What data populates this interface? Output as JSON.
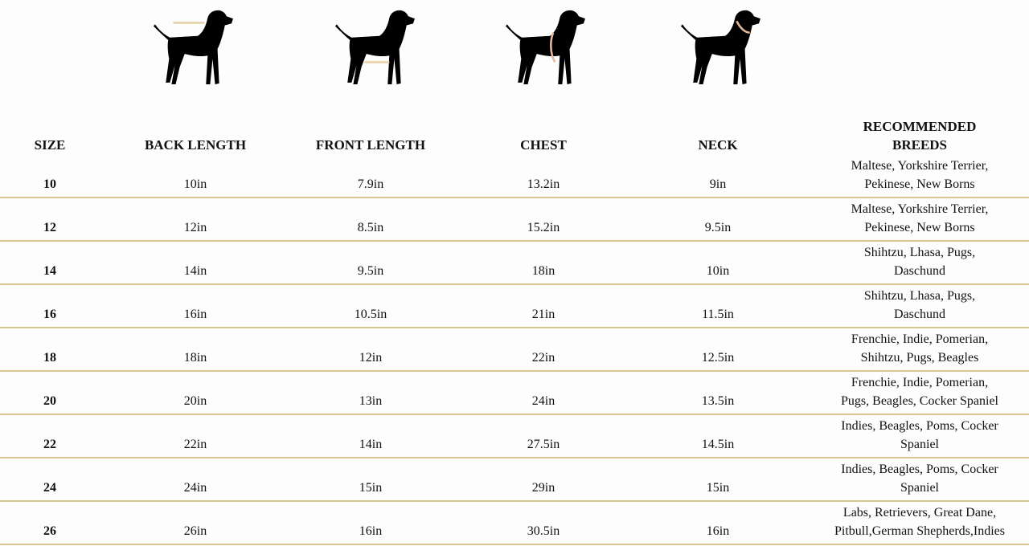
{
  "icons": [
    "dog-back-length-icon",
    "dog-front-length-icon",
    "dog-chest-icon",
    "dog-neck-icon"
  ],
  "colors": {
    "row_divider": "#d9c791",
    "measure_mark": "#e8b89a",
    "silhouette": "#000000"
  },
  "headers": {
    "size": "SIZE",
    "back": "BACK LENGTH",
    "front": "FRONT LENGTH",
    "chest": "CHEST",
    "neck": "NECK",
    "breeds_1": "RECOMMENDED",
    "breeds_2": "BREEDS"
  },
  "rows": [
    {
      "size": "10",
      "back": "10in",
      "front": "7.9in",
      "chest": "13.2in",
      "neck": "9in",
      "breeds_1": "Maltese, Yorkshire Terrier,",
      "breeds_2": "Pekinese, New Borns"
    },
    {
      "size": "12",
      "back": "12in",
      "front": "8.5in",
      "chest": "15.2in",
      "neck": "9.5in",
      "breeds_1": "Maltese, Yorkshire Terrier,",
      "breeds_2": "Pekinese, New Borns"
    },
    {
      "size": "14",
      "back": "14in",
      "front": "9.5in",
      "chest": "18in",
      "neck": "10in",
      "breeds_1": "Shihtzu, Lhasa, Pugs,",
      "breeds_2": "Daschund"
    },
    {
      "size": "16",
      "back": "16in",
      "front": "10.5in",
      "chest": "21in",
      "neck": "11.5in",
      "breeds_1": "Shihtzu, Lhasa, Pugs,",
      "breeds_2": "Daschund"
    },
    {
      "size": "18",
      "back": "18in",
      "front": "12in",
      "chest": "22in",
      "neck": "12.5in",
      "breeds_1": "Frenchie, Indie, Pomerian,",
      "breeds_2": "Shihtzu, Pugs, Beagles"
    },
    {
      "size": "20",
      "back": "20in",
      "front": "13in",
      "chest": "24in",
      "neck": "13.5in",
      "breeds_1": "Frenchie, Indie, Pomerian,",
      "breeds_2": "Pugs, Beagles, Cocker Spaniel"
    },
    {
      "size": "22",
      "back": "22in",
      "front": "14in",
      "chest": "27.5in",
      "neck": "14.5in",
      "breeds_1": "Indies, Beagles, Poms, Cocker",
      "breeds_2": "Spaniel"
    },
    {
      "size": "24",
      "back": "24in",
      "front": "15in",
      "chest": "29in",
      "neck": "15in",
      "breeds_1": "Indies, Beagles, Poms, Cocker",
      "breeds_2": "Spaniel"
    },
    {
      "size": "26",
      "back": "26in",
      "front": "16in",
      "chest": "30.5in",
      "neck": "16in",
      "breeds_1": "Labs, Retrievers, Great Dane,",
      "breeds_2": "Pitbull,German Shepherds,Indies"
    }
  ]
}
